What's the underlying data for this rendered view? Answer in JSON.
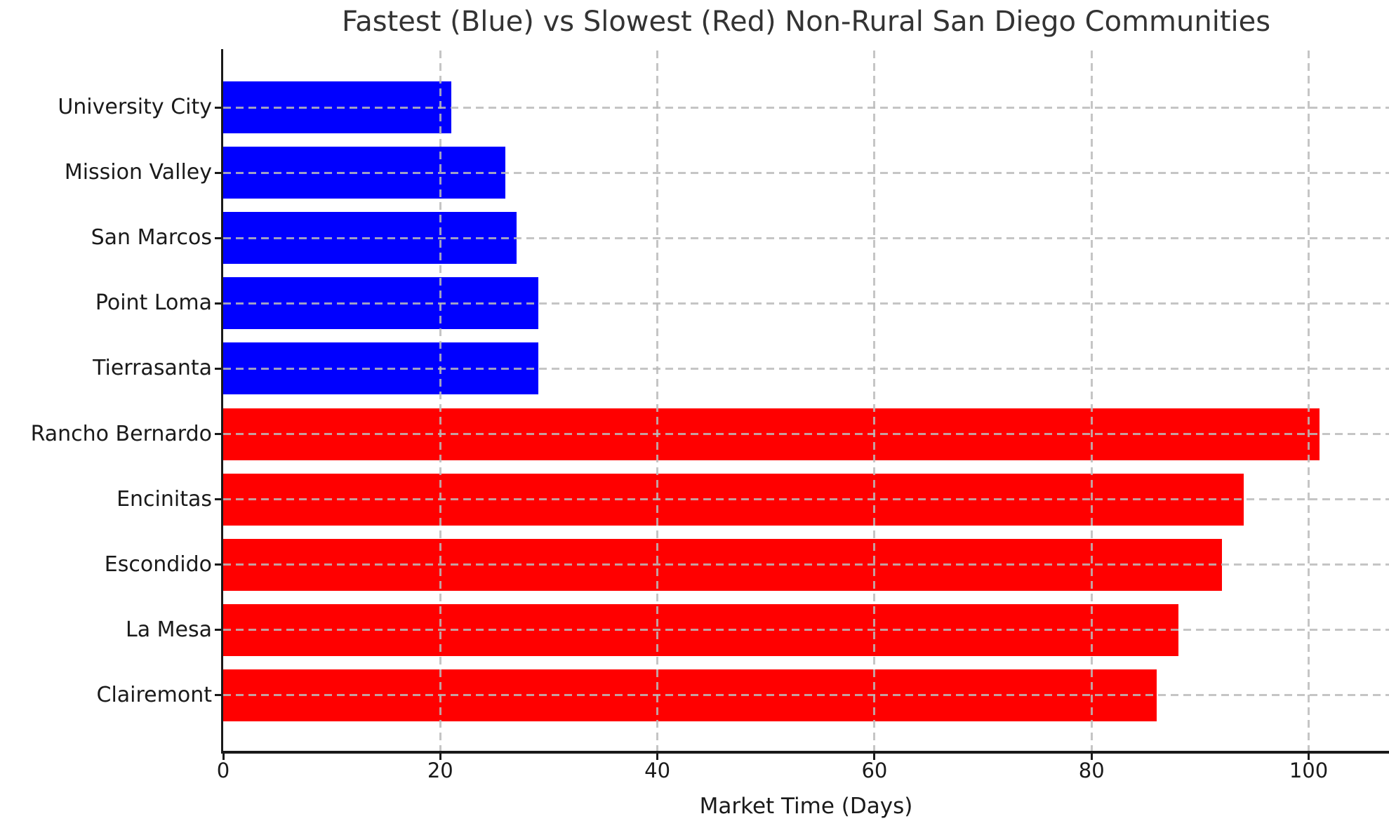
{
  "chart_data": {
    "type": "bar",
    "orientation": "horizontal",
    "title": "Fastest (Blue) vs Slowest (Red) Non-Rural San Diego Communities",
    "xlabel": "Market Time (Days)",
    "categories": [
      "University City",
      "Mission Valley",
      "San Marcos",
      "Point Loma",
      "Tierrasanta",
      "Rancho Bernardo",
      "Encinitas",
      "Escondido",
      "La Mesa",
      "Clairemont"
    ],
    "values": [
      21,
      26,
      27,
      29,
      29,
      101,
      94,
      92,
      88,
      86
    ],
    "bar_colors": [
      "#0000ff",
      "#0000ff",
      "#0000ff",
      "#0000ff",
      "#0000ff",
      "#ff0000",
      "#ff0000",
      "#ff0000",
      "#ff0000",
      "#ff0000"
    ],
    "legend": {
      "fast_label": "Fastest (Blue)",
      "fast_color": "#0000ff",
      "slow_label": "Slowest (Red)",
      "slow_color": "#ff0000"
    },
    "x_ticks": [
      0,
      20,
      40,
      60,
      80,
      100
    ],
    "xlim": [
      0,
      107.4
    ],
    "ylabel": "",
    "grid": "dashed",
    "grid_color": "#bbbbbb",
    "axis_color": "#1a1a1a",
    "title_color": "#333333",
    "background": "#ffffff"
  }
}
